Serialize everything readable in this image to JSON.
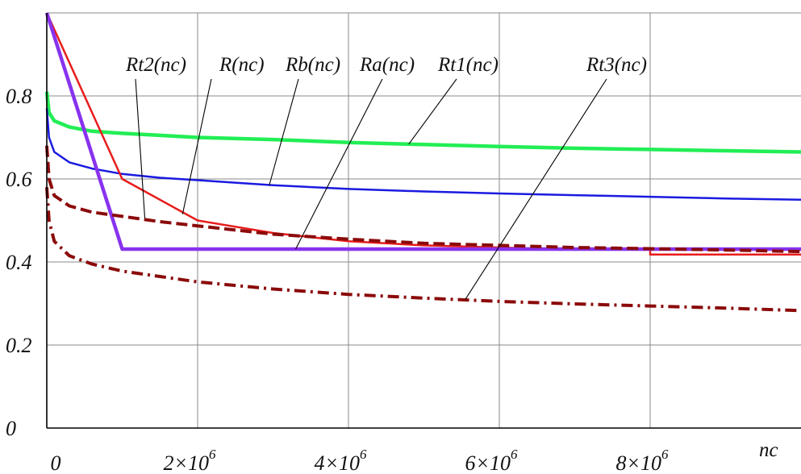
{
  "chart_data": {
    "type": "line",
    "xlabel": "nc",
    "ylabel": "",
    "xlim": [
      0,
      10000000
    ],
    "ylim": [
      0,
      1
    ],
    "grid": true,
    "legend": "inline labels with leader lines",
    "x_ticks": [
      {
        "value": 0,
        "mantissa": "0",
        "exponent": ""
      },
      {
        "value": 2000000,
        "mantissa": "2×10",
        "exponent": "6"
      },
      {
        "value": 4000000,
        "mantissa": "4×10",
        "exponent": "6"
      },
      {
        "value": 6000000,
        "mantissa": "6×10",
        "exponent": "6"
      },
      {
        "value": 8000000,
        "mantissa": "8×10",
        "exponent": "6"
      }
    ],
    "y_ticks": [
      {
        "value": 0,
        "label": "0"
      },
      {
        "value": 0.2,
        "label": "0.2"
      },
      {
        "value": 0.4,
        "label": "0.4"
      },
      {
        "value": 0.6,
        "label": "0.6"
      },
      {
        "value": 0.8,
        "label": "0.8"
      }
    ],
    "series": [
      {
        "name": "Rt1(nc)",
        "color": "#22ee55",
        "style": "solid",
        "width": 4.5,
        "x": [
          0,
          30000,
          100000,
          300000,
          600000,
          1000000,
          1500000,
          2000000,
          3000000,
          4000000,
          5000000,
          6000000,
          7000000,
          8000000,
          9000000,
          10000000
        ],
        "y": [
          0.81,
          0.76,
          0.74,
          0.725,
          0.715,
          0.71,
          0.705,
          0.7,
          0.695,
          0.688,
          0.683,
          0.678,
          0.674,
          0.671,
          0.668,
          0.665
        ]
      },
      {
        "name": "Rb(nc)",
        "color": "#1a1ae0",
        "style": "solid",
        "width": 2.5,
        "x": [
          0,
          30000,
          100000,
          300000,
          600000,
          1000000,
          1500000,
          2000000,
          3000000,
          4000000,
          5000000,
          6000000,
          7000000,
          8000000,
          9000000,
          10000000
        ],
        "y": [
          0.77,
          0.7,
          0.665,
          0.64,
          0.625,
          0.612,
          0.603,
          0.597,
          0.585,
          0.576,
          0.57,
          0.565,
          0.561,
          0.557,
          0.553,
          0.55
        ]
      },
      {
        "name": "R(nc)",
        "color": "#e81c1c",
        "style": "solid",
        "width": 2.5,
        "x": [
          0,
          1000000,
          2000000,
          3000000,
          4000000,
          5000000,
          6000000,
          7000000,
          8000000,
          8000001,
          10000000
        ],
        "y": [
          1.0,
          0.6,
          0.5,
          0.47,
          0.45,
          0.44,
          0.435,
          0.43,
          0.43,
          0.418,
          0.418
        ]
      },
      {
        "name": "Ra(nc)",
        "color": "#8833ee",
        "style": "solid",
        "width": 4.5,
        "x": [
          0,
          1000000,
          10000000
        ],
        "y": [
          1.0,
          0.431,
          0.431
        ]
      },
      {
        "name": "Rt2(nc)",
        "color": "#8b0a0a",
        "style": "dash",
        "width": 4,
        "x": [
          0,
          30000,
          100000,
          300000,
          600000,
          1000000,
          1500000,
          2000000,
          3000000,
          4000000,
          5000000,
          6000000,
          7000000,
          8000000,
          9000000,
          10000000
        ],
        "y": [
          0.68,
          0.6,
          0.56,
          0.535,
          0.52,
          0.51,
          0.497,
          0.487,
          0.467,
          0.455,
          0.445,
          0.44,
          0.435,
          0.432,
          0.429,
          0.425
        ]
      },
      {
        "name": "Rt3(nc)",
        "color": "#8b0a0a",
        "style": "dashdot",
        "width": 4,
        "x": [
          0,
          30000,
          100000,
          300000,
          600000,
          1000000,
          1500000,
          2000000,
          3000000,
          4000000,
          5000000,
          6000000,
          7000000,
          8000000,
          9000000,
          10000000
        ],
        "y": [
          0.58,
          0.5,
          0.45,
          0.415,
          0.395,
          0.378,
          0.365,
          0.352,
          0.335,
          0.322,
          0.313,
          0.305,
          0.299,
          0.294,
          0.289,
          0.283
        ]
      }
    ],
    "labels": [
      {
        "series": "Rt2(nc)",
        "text": "Rt2(nc)",
        "anchor_x": 1300000,
        "anchor_y": 0.505
      },
      {
        "series": "R(nc)",
        "text": "R(nc)",
        "anchor_x": 1800000,
        "anchor_y": 0.515
      },
      {
        "series": "Rb(nc)",
        "text": "Rb(nc)",
        "anchor_x": 2950000,
        "anchor_y": 0.585
      },
      {
        "series": "Ra(nc)",
        "text": "Ra(nc)",
        "anchor_x": 3300000,
        "anchor_y": 0.431
      },
      {
        "series": "Rt1(nc)",
        "text": "Rt1(nc)",
        "anchor_x": 4800000,
        "anchor_y": 0.684
      },
      {
        "series": "Rt3(nc)",
        "text": "Rt3(nc)",
        "anchor_x": 5550000,
        "anchor_y": 0.31
      }
    ]
  }
}
